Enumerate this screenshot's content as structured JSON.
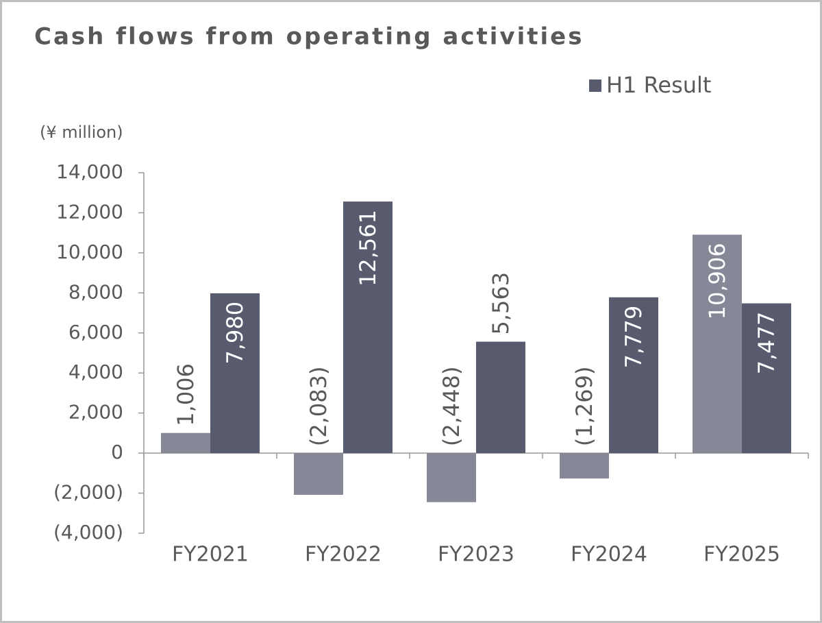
{
  "chart_data": {
    "type": "bar",
    "title": "Cash flows from operating activities",
    "y_unit": "(¥ million)",
    "categories": [
      "FY2021",
      "FY2022",
      "FY2023",
      "FY2024",
      "FY2025"
    ],
    "series": [
      {
        "color": "#868898",
        "values": [
          1006,
          -2083,
          -2448,
          -1269,
          10906
        ],
        "value_labels": [
          "1,006",
          "(2,083)",
          "(2,448)",
          "(1,269)",
          "10,906"
        ]
      },
      {
        "name": "H1 Result",
        "color": "#585b6e",
        "values": [
          7980,
          12561,
          5563,
          7779,
          7477
        ],
        "value_labels": [
          "7,980",
          "12,561",
          "5,563",
          "7,779",
          "7,477"
        ]
      }
    ],
    "ylim": [
      -4000,
      14000
    ],
    "yticks": [
      {
        "value": -4000,
        "label": "(4,000)"
      },
      {
        "value": -2000,
        "label": "(2,000)"
      },
      0,
      {
        "value": 2000,
        "label": "2,000"
      },
      {
        "value": 4000,
        "label": "4,000"
      },
      {
        "value": 6000,
        "label": "6,000"
      },
      {
        "value": 8000,
        "label": "8,000"
      },
      {
        "value": 10000,
        "label": "10,000"
      },
      {
        "value": 12000,
        "label": "12,000"
      },
      {
        "value": 14000,
        "label": "14,000"
      }
    ],
    "legend": "top-right"
  }
}
